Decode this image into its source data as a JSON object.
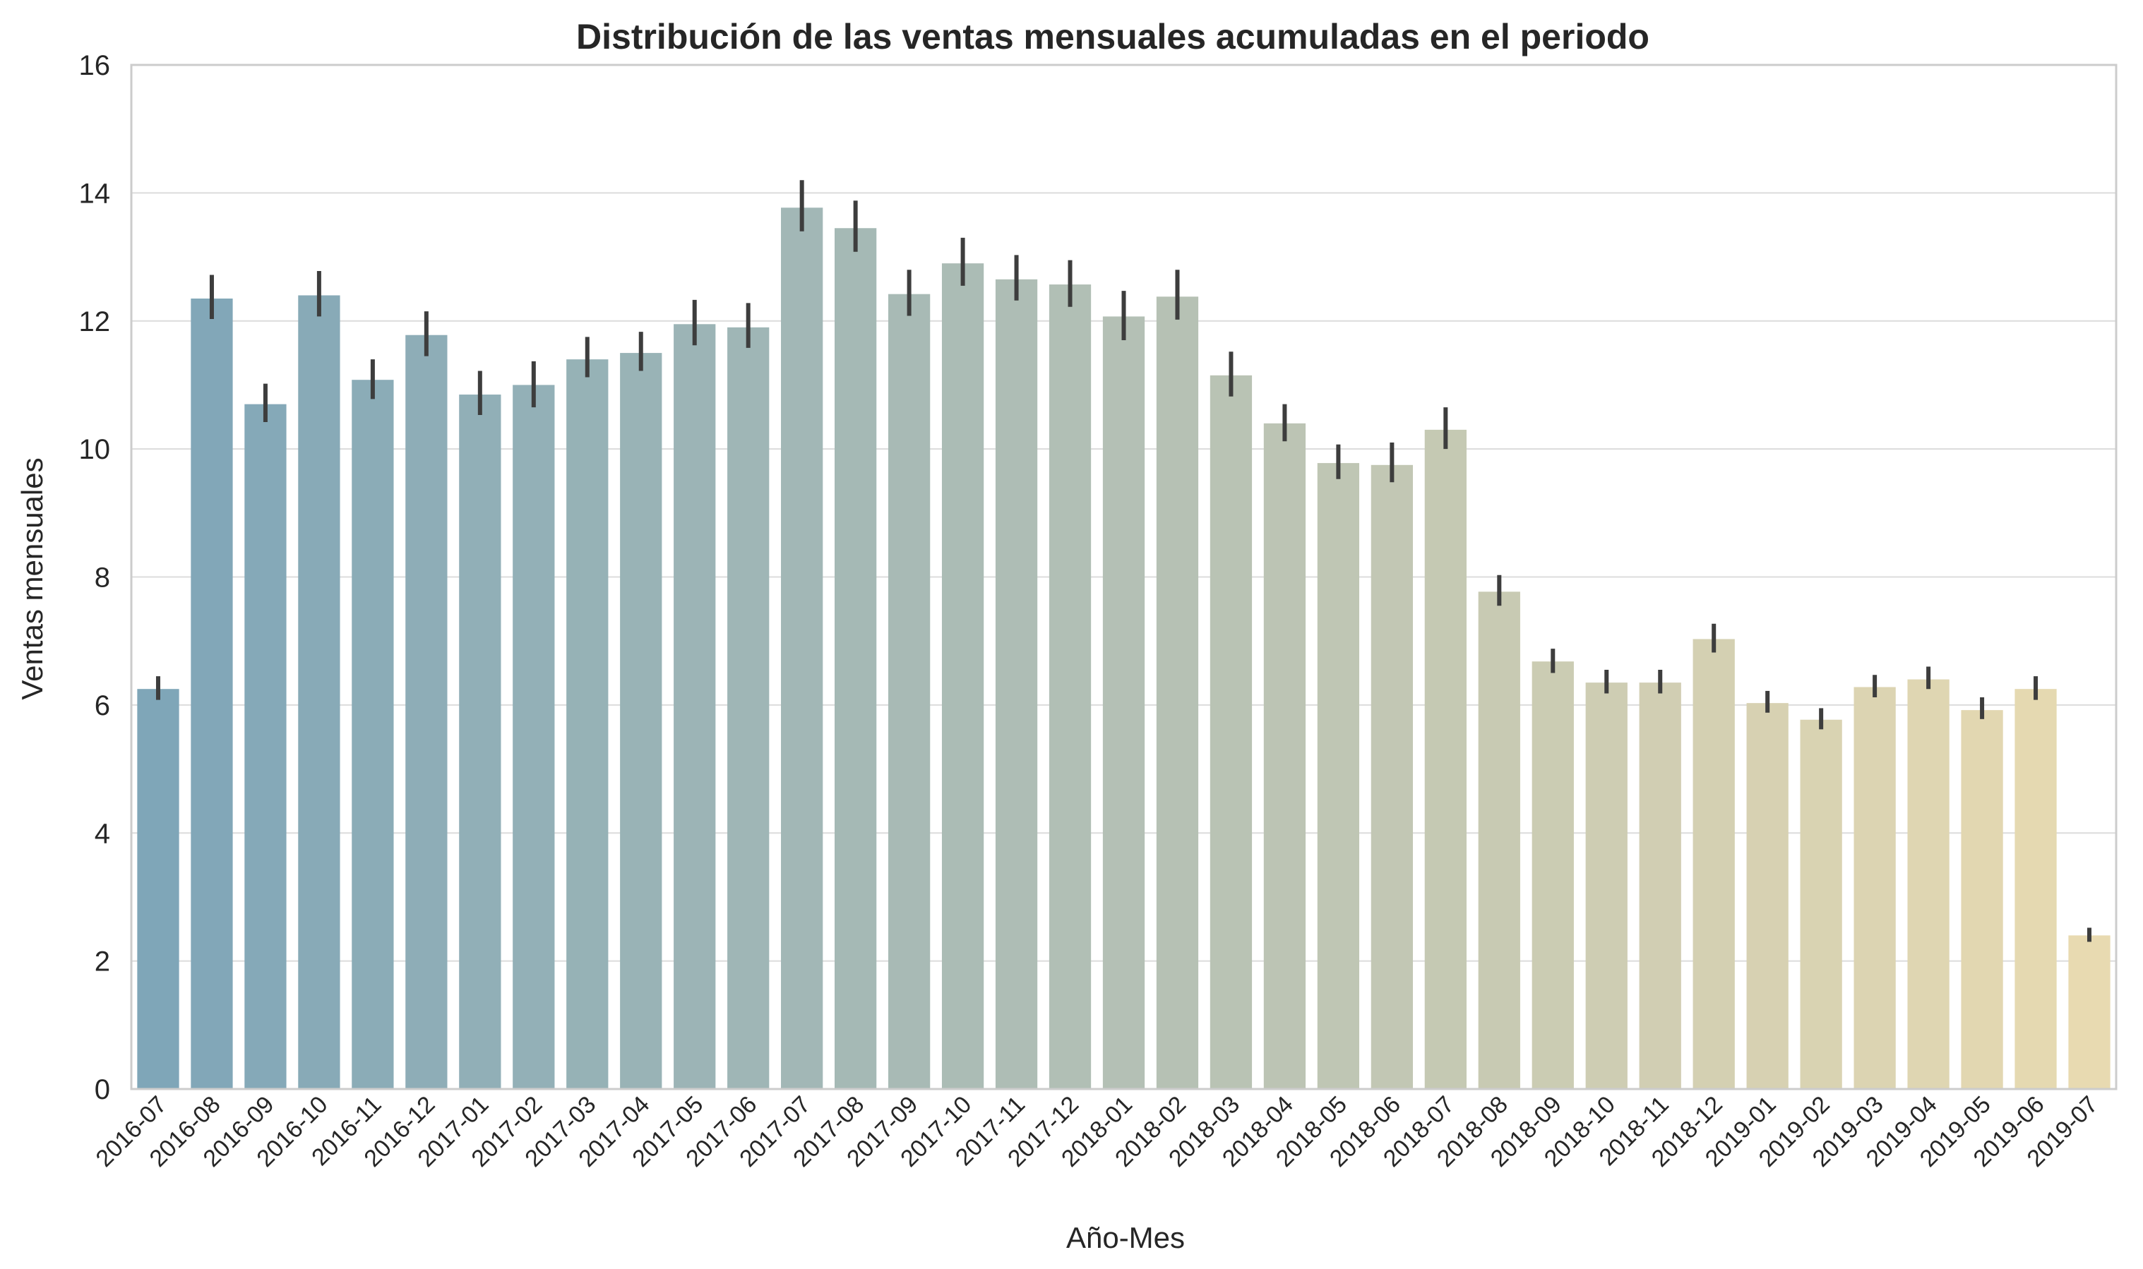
{
  "chart_data": {
    "type": "bar",
    "title": "Distribución de las ventas mensuales acumuladas en el periodo",
    "xlabel": "Año-Mes",
    "ylabel": "Ventas mensuales",
    "ylim": [
      0,
      16
    ],
    "yticks": [
      "0",
      "2",
      "4",
      "6",
      "8",
      "10",
      "12",
      "14",
      "16"
    ],
    "grid": true,
    "palette": {
      "start": "#7fa6b8",
      "end": "#e8dab1",
      "error_bar": "#3d3d3d"
    },
    "categories": [
      "2016-07",
      "2016-08",
      "2016-09",
      "2016-10",
      "2016-11",
      "2016-12",
      "2017-01",
      "2017-02",
      "2017-03",
      "2017-04",
      "2017-05",
      "2017-06",
      "2017-07",
      "2017-08",
      "2017-09",
      "2017-10",
      "2017-11",
      "2017-12",
      "2018-01",
      "2018-02",
      "2018-03",
      "2018-04",
      "2018-05",
      "2018-06",
      "2018-07",
      "2018-08",
      "2018-09",
      "2018-10",
      "2018-11",
      "2018-12",
      "2019-01",
      "2019-02",
      "2019-03",
      "2019-04",
      "2019-05",
      "2019-06",
      "2019-07"
    ],
    "values": [
      6.25,
      12.35,
      10.7,
      12.4,
      11.08,
      11.78,
      10.85,
      11.0,
      11.4,
      11.5,
      11.95,
      11.9,
      13.77,
      13.45,
      12.42,
      12.9,
      12.65,
      12.57,
      12.07,
      12.38,
      11.15,
      10.4,
      9.78,
      9.75,
      10.3,
      7.77,
      6.68,
      6.35,
      6.35,
      7.03,
      6.03,
      5.77,
      6.28,
      6.4,
      5.92,
      6.25,
      2.4
    ],
    "error_low": [
      6.08,
      12.03,
      10.42,
      12.07,
      10.78,
      11.45,
      10.53,
      10.65,
      11.12,
      11.22,
      11.62,
      11.58,
      13.4,
      13.08,
      12.08,
      12.55,
      12.32,
      12.22,
      11.7,
      12.02,
      10.82,
      10.12,
      9.53,
      9.48,
      10.0,
      7.55,
      6.5,
      6.18,
      6.18,
      6.82,
      5.88,
      5.62,
      6.12,
      6.25,
      5.78,
      6.08,
      2.3
    ],
    "error_high": [
      6.45,
      12.72,
      11.02,
      12.78,
      11.4,
      12.15,
      11.22,
      11.37,
      11.75,
      11.83,
      12.33,
      12.28,
      14.2,
      13.88,
      12.8,
      13.3,
      13.03,
      12.95,
      12.47,
      12.8,
      11.52,
      10.7,
      10.07,
      10.1,
      10.65,
      8.03,
      6.88,
      6.55,
      6.55,
      7.27,
      6.22,
      5.95,
      6.47,
      6.6,
      6.12,
      6.45,
      2.52
    ]
  }
}
